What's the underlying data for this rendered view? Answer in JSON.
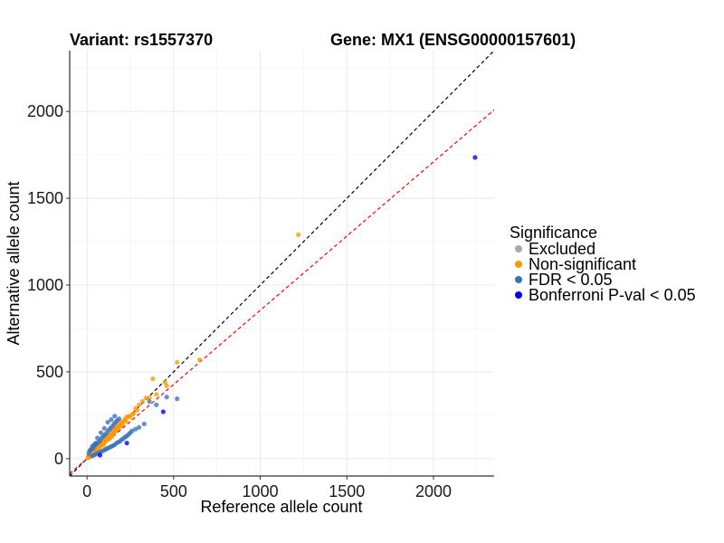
{
  "chart_data": {
    "type": "scatter",
    "title_left": "Variant: rs1557370",
    "title_right": "Gene: MX1 (ENSG00000157601)",
    "xlabel": "Reference allele count",
    "ylabel": "Alternative allele count",
    "xlim": [
      -100,
      2350
    ],
    "ylim": [
      -100,
      2350
    ],
    "x_ticks": [
      0,
      500,
      1000,
      1500,
      2000
    ],
    "y_ticks": [
      0,
      500,
      1000,
      1500,
      2000
    ],
    "grid": true,
    "legend": {
      "title": "Significance",
      "position": "right",
      "entries": [
        {
          "label": "Excluded",
          "color": "#a9a9a9"
        },
        {
          "label": "Non-significant",
          "color": "#ff9900"
        },
        {
          "label": "FDR < 0.05",
          "color": "#3a72b8"
        },
        {
          "label": "Bonferroni P-val < 0.05",
          "color": "#0000ee"
        }
      ]
    },
    "reference_lines": [
      {
        "name": "identity",
        "slope": 1.0,
        "intercept": 0,
        "color": "#000000"
      },
      {
        "name": "fit",
        "slope": 0.855,
        "intercept": 0,
        "color": "#ff0000"
      }
    ],
    "series": [
      {
        "name": "Non-significant",
        "color": "#ff9900",
        "points": [
          [
            10,
            12
          ],
          [
            15,
            18
          ],
          [
            20,
            22
          ],
          [
            22,
            20
          ],
          [
            25,
            30
          ],
          [
            30,
            28
          ],
          [
            35,
            40
          ],
          [
            38,
            35
          ],
          [
            40,
            45
          ],
          [
            45,
            42
          ],
          [
            50,
            55
          ],
          [
            52,
            48
          ],
          [
            55,
            60
          ],
          [
            60,
            58
          ],
          [
            62,
            70
          ],
          [
            65,
            62
          ],
          [
            70,
            75
          ],
          [
            72,
            68
          ],
          [
            75,
            80
          ],
          [
            78,
            72
          ],
          [
            80,
            85
          ],
          [
            85,
            82
          ],
          [
            88,
            95
          ],
          [
            90,
            88
          ],
          [
            95,
            100
          ],
          [
            98,
            92
          ],
          [
            100,
            110
          ],
          [
            105,
            100
          ],
          [
            110,
            115
          ],
          [
            112,
            108
          ],
          [
            115,
            120
          ],
          [
            118,
            112
          ],
          [
            120,
            130
          ],
          [
            125,
            118
          ],
          [
            130,
            135
          ],
          [
            135,
            128
          ],
          [
            140,
            150
          ],
          [
            145,
            140
          ],
          [
            150,
            160
          ],
          [
            155,
            150
          ],
          [
            160,
            170
          ],
          [
            165,
            158
          ],
          [
            170,
            175
          ],
          [
            175,
            170
          ],
          [
            180,
            190
          ],
          [
            185,
            178
          ],
          [
            190,
            200
          ],
          [
            195,
            188
          ],
          [
            200,
            210
          ],
          [
            205,
            198
          ],
          [
            210,
            215
          ],
          [
            220,
            230
          ],
          [
            225,
            215
          ],
          [
            230,
            240
          ],
          [
            240,
            245
          ],
          [
            250,
            240
          ],
          [
            260,
            255
          ],
          [
            270,
            260
          ],
          [
            280,
            290
          ],
          [
            290,
            280
          ],
          [
            300,
            310
          ],
          [
            320,
            330
          ],
          [
            340,
            350
          ],
          [
            360,
            350
          ],
          [
            380,
            460
          ],
          [
            400,
            370
          ],
          [
            450,
            440
          ],
          [
            460,
            420
          ],
          [
            520,
            555
          ],
          [
            650,
            570
          ],
          [
            1220,
            1290
          ],
          [
            55,
            72
          ],
          [
            68,
            58
          ],
          [
            82,
            100
          ],
          [
            95,
            78
          ],
          [
            108,
            130
          ],
          [
            128,
            112
          ],
          [
            142,
            125
          ],
          [
            165,
            185
          ],
          [
            42,
            55
          ],
          [
            28,
            40
          ],
          [
            18,
            25
          ],
          [
            12,
            8
          ],
          [
            8,
            15
          ],
          [
            5,
            5
          ]
        ]
      },
      {
        "name": "FDR < 0.05",
        "color": "#3a72b8",
        "points": [
          [
            10,
            30
          ],
          [
            15,
            45
          ],
          [
            20,
            50
          ],
          [
            25,
            55
          ],
          [
            30,
            15
          ],
          [
            35,
            60
          ],
          [
            40,
            20
          ],
          [
            45,
            75
          ],
          [
            50,
            25
          ],
          [
            55,
            85
          ],
          [
            60,
            30
          ],
          [
            65,
            95
          ],
          [
            70,
            35
          ],
          [
            75,
            105
          ],
          [
            80,
            40
          ],
          [
            85,
            120
          ],
          [
            90,
            45
          ],
          [
            95,
            130
          ],
          [
            100,
            50
          ],
          [
            105,
            140
          ],
          [
            110,
            55
          ],
          [
            115,
            150
          ],
          [
            120,
            60
          ],
          [
            125,
            165
          ],
          [
            130,
            65
          ],
          [
            135,
            175
          ],
          [
            140,
            70
          ],
          [
            145,
            185
          ],
          [
            150,
            75
          ],
          [
            155,
            200
          ],
          [
            160,
            80
          ],
          [
            165,
            210
          ],
          [
            170,
            90
          ],
          [
            175,
            220
          ],
          [
            180,
            95
          ],
          [
            185,
            230
          ],
          [
            190,
            100
          ],
          [
            200,
            110
          ],
          [
            210,
            115
          ],
          [
            220,
            125
          ],
          [
            230,
            130
          ],
          [
            240,
            140
          ],
          [
            250,
            150
          ],
          [
            260,
            160
          ],
          [
            280,
            170
          ],
          [
            300,
            180
          ],
          [
            330,
            200
          ],
          [
            360,
            330
          ],
          [
            400,
            310
          ],
          [
            460,
            355
          ],
          [
            520,
            345
          ],
          [
            120,
            210
          ],
          [
            140,
            225
          ],
          [
            160,
            245
          ],
          [
            100,
            175
          ],
          [
            80,
            150
          ],
          [
            60,
            120
          ],
          [
            50,
            90
          ],
          [
            40,
            80
          ],
          [
            30,
            70
          ]
        ]
      },
      {
        "name": "Bonferroni P-val < 0.05",
        "color": "#0000ee",
        "points": [
          [
            2240,
            1735
          ],
          [
            440,
            270
          ],
          [
            230,
            90
          ],
          [
            75,
            20
          ]
        ]
      }
    ]
  }
}
